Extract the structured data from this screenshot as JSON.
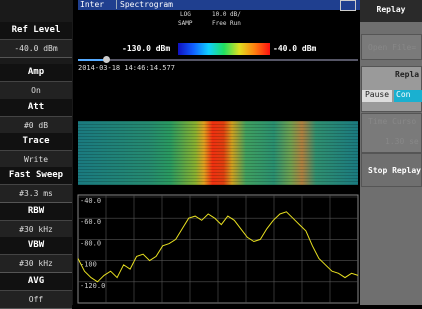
{
  "status": {
    "mode": "Inter",
    "view": "Spectrogram",
    "scale": "LOG",
    "div": "10.0 dB/",
    "detector": "SAMP",
    "trigger": "Free Run"
  },
  "colorbar": {
    "min": "-130.0 dBm",
    "max": "-40.0 dBm"
  },
  "timestamp": "2014-03-18 14:46:14.577",
  "left_menu": [
    [
      "Ref Level",
      "-40.0 dBm"
    ],
    [
      "Amp",
      "On"
    ],
    [
      "Att",
      "#0 dB"
    ],
    [
      "Trace",
      "Write"
    ],
    [
      "Fast Sweep",
      "#3.3 ms"
    ],
    [
      "RBW",
      "#30 kHz"
    ],
    [
      "VBW",
      "#30 kHz"
    ],
    [
      "AVG",
      "Off"
    ]
  ],
  "right_menu": {
    "title": "Replay",
    "open_file": "Open File=",
    "replay": "Repla",
    "pause": "Pause",
    "continue": "Con",
    "time_cursor": "Time Curso",
    "time_value": "1.30 se",
    "stop": "Stop Replay"
  },
  "trace": {
    "type": "line",
    "color": "#e8e020",
    "ylim": [
      -140,
      -40
    ],
    "yticks": [
      {
        "value": -40,
        "label": "-40.0"
      },
      {
        "value": -60,
        "label": "-60.0"
      },
      {
        "value": -80,
        "label": "-80.0"
      },
      -100,
      {
        "value": -120,
        "label": "-120.0"
      }
    ],
    "values": [
      -98,
      -110,
      -116,
      -120,
      -114,
      -110,
      -116,
      -104,
      -108,
      -96,
      -94,
      -100,
      -96,
      -86,
      -84,
      -80,
      -70,
      -60,
      -58,
      -62,
      -56,
      -60,
      -66,
      -58,
      -62,
      -70,
      -78,
      -82,
      -80,
      -70,
      -62,
      -56,
      -54,
      -60,
      -66,
      -72,
      -86,
      -98,
      -104,
      -110,
      -112,
      -116,
      -112,
      -114
    ]
  }
}
